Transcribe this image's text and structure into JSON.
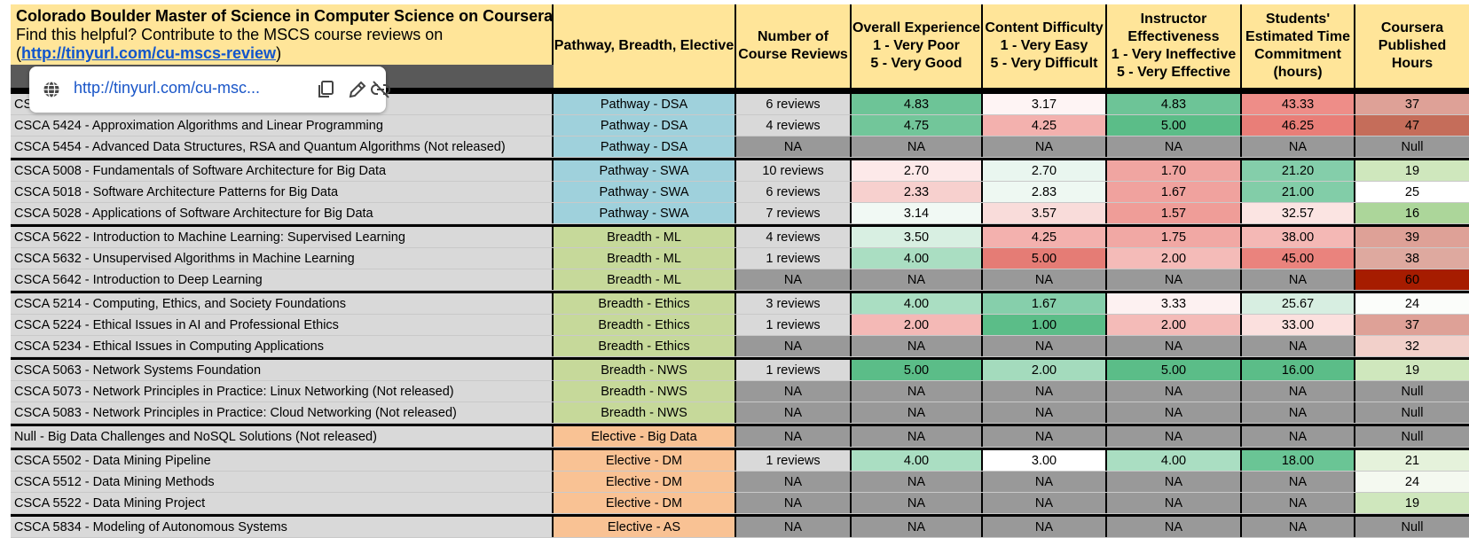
{
  "title": "Colorado Boulder Master of Science in Computer Science on Coursera",
  "subtitle_prefix": "Find this helpful? Contribute to the MSCS course reviews on",
  "subtitle_open": "(",
  "subtitle_link": "http://tinyurl.com/cu-mscs-review",
  "subtitle_close": ")",
  "headers": {
    "pathway": "Pathway, Breadth, Elective",
    "reviews": [
      "Number of",
      "Course Reviews"
    ],
    "overall": [
      "Overall Experience",
      "1 - Very Poor",
      "5 - Very Good"
    ],
    "difficulty": [
      "Content Difficulty",
      "1 - Very Easy",
      "5 - Very Difficult"
    ],
    "instructor": [
      "Instructor",
      "Effectiveness",
      "1 - Very Ineffective",
      "5 - Very Effective"
    ],
    "time": [
      "Students'",
      "Estimated Time",
      "Commitment",
      "(hours)"
    ],
    "hours": [
      "Coursera",
      "Published",
      "Hours"
    ]
  },
  "link_popup": {
    "url": "http://tinyurl.com/cu-msc...",
    "globe_icon": "globe-icon",
    "copy_icon": "copy-icon",
    "edit_icon": "pencil-icon",
    "unlink_icon": "unlink-icon"
  },
  "colors": {
    "header_bg": "#ffe599",
    "dsa": "#9fd1dc",
    "swa": "#9fd1dc",
    "breadth": "#c6d99a",
    "elective": "#f9c294",
    "na": "#999999"
  },
  "rows": [
    {
      "course": "CS",
      "path": "Pathway - DSA",
      "pcolor": "#9fd1dc",
      "reviews": "6 reviews",
      "overall": "4.83",
      "oc": "#6dc497",
      "diff": "3.17",
      "dc": "#fef4f4",
      "inst": "4.83",
      "ic": "#6dc497",
      "time": "43.33",
      "tc": "#ee8d88",
      "hours": "37",
      "hc": "#dea197",
      "group": true
    },
    {
      "course": "CSCA 5424 - Approximation Algorithms and Linear Programming",
      "path": "Pathway - DSA",
      "pcolor": "#9fd1dc",
      "reviews": "4 reviews",
      "overall": "4.75",
      "oc": "#72c69a",
      "diff": "4.25",
      "dc": "#f3b1ae",
      "inst": "5.00",
      "ic": "#5bbd88",
      "time": "46.25",
      "tc": "#e97e78",
      "hours": "47",
      "hc": "#c56d5a"
    },
    {
      "course": "CSCA 5454 - Advanced Data Structures, RSA and Quantum Algorithms (Not released)",
      "path": "Pathway - DSA",
      "pcolor": "#9fd1dc",
      "reviews": "NA",
      "overall": "NA",
      "oc": "#999999",
      "diff": "NA",
      "dc": "#999999",
      "inst": "NA",
      "ic": "#999999",
      "time": "NA",
      "tc": "#999999",
      "hours": "Null",
      "hc": "#999999",
      "rna": true
    },
    {
      "course": "CSCA 5008 - Fundamentals of Software Architecture for Big Data",
      "path": "Pathway - SWA",
      "pcolor": "#9fd1dc",
      "reviews": "10 reviews",
      "overall": "2.70",
      "oc": "#fde9e9",
      "diff": "2.70",
      "dc": "#e9f6ef",
      "inst": "1.70",
      "ic": "#f0a5a1",
      "time": "21.20",
      "tc": "#84ceaa",
      "hours": "19",
      "hc": "#cfe7bd",
      "group": true
    },
    {
      "course": "CSCA 5018 - Software Architecture Patterns for Big Data",
      "path": "Pathway - SWA",
      "pcolor": "#9fd1dc",
      "reviews": "6 reviews",
      "overall": "2.33",
      "oc": "#f7d0ce",
      "diff": "2.83",
      "dc": "#eef8f2",
      "inst": "1.67",
      "ic": "#f0a29e",
      "time": "21.00",
      "tc": "#82cda8",
      "hours": "25",
      "hc": "#ffffff"
    },
    {
      "course": "CSCA 5028 - Applications of Software Architecture for Big Data",
      "path": "Pathway - SWA",
      "pcolor": "#9fd1dc",
      "reviews": "7 reviews",
      "overall": "3.14",
      "oc": "#f1f9f4",
      "diff": "3.57",
      "dc": "#f9dcda",
      "inst": "1.57",
      "ic": "#ef9d98",
      "time": "32.57",
      "tc": "#fbe4e2",
      "hours": "16",
      "hc": "#acd69a"
    },
    {
      "course": "CSCA 5622 - Introduction to Machine Learning: Supervised Learning",
      "path": "Breadth - ML",
      "pcolor": "#c6d99a",
      "reviews": "4 reviews",
      "overall": "3.50",
      "oc": "#d8efe2",
      "diff": "4.25",
      "dc": "#f3b1ae",
      "inst": "1.75",
      "ic": "#f1a8a4",
      "time": "38.00",
      "tc": "#f4b8b5",
      "hours": "39",
      "hc": "#dea197",
      "group": true
    },
    {
      "course": "CSCA 5632 - Unsupervised Algorithms in Machine Learning",
      "path": "Breadth - ML",
      "pcolor": "#c6d99a",
      "reviews": "1 reviews",
      "overall": "4.00",
      "oc": "#aadec2",
      "diff": "5.00",
      "dc": "#e57c75",
      "inst": "2.00",
      "ic": "#f4bbb8",
      "time": "45.00",
      "tc": "#ea837d",
      "hours": "38",
      "hc": "#dea99f"
    },
    {
      "course": "CSCA 5642 - Introduction to Deep Learning",
      "path": "Breadth - ML",
      "pcolor": "#c6d99a",
      "reviews": "NA",
      "overall": "NA",
      "oc": "#999999",
      "diff": "NA",
      "dc": "#999999",
      "inst": "NA",
      "ic": "#999999",
      "time": "NA",
      "tc": "#999999",
      "hours": "60",
      "hc": "#a61c00",
      "rna": true
    },
    {
      "course": "CSCA 5214 - Computing, Ethics, and Society Foundations",
      "path": "Breadth - Ethics",
      "pcolor": "#c6d99a",
      "reviews": "3 reviews",
      "overall": "4.00",
      "oc": "#aadec2",
      "diff": "1.67",
      "dc": "#86cfab",
      "inst": "3.33",
      "ic": "#fdf1f1",
      "time": "25.67",
      "tc": "#d7eee1",
      "hours": "24",
      "hc": "#fbfdfa",
      "group": true
    },
    {
      "course": "CSCA 5224 - Ethical Issues in AI and Professional Ethics",
      "path": "Breadth - Ethics",
      "pcolor": "#c6d99a",
      "reviews": "1 reviews",
      "overall": "2.00",
      "oc": "#f4b9b6",
      "diff": "1.00",
      "dc": "#5bbd88",
      "inst": "2.00",
      "ic": "#f4bbb8",
      "time": "33.00",
      "tc": "#fbe0de",
      "hours": "37",
      "hc": "#dea197"
    },
    {
      "course": "CSCA 5234 - Ethical Issues in Computing Applications",
      "path": "Breadth - Ethics",
      "pcolor": "#c6d99a",
      "reviews": "NA",
      "overall": "NA",
      "oc": "#999999",
      "diff": "NA",
      "dc": "#999999",
      "inst": "NA",
      "ic": "#999999",
      "time": "NA",
      "tc": "#999999",
      "hours": "32",
      "hc": "#f2d0ca",
      "rna": true
    },
    {
      "course": "CSCA 5063 - Network Systems Foundation",
      "path": "Breadth - NWS",
      "pcolor": "#c6d99a",
      "reviews": "1 reviews",
      "overall": "5.00",
      "oc": "#5bbd88",
      "diff": "2.00",
      "dc": "#a4dbbd",
      "inst": "5.00",
      "ic": "#5bbd88",
      "time": "16.00",
      "tc": "#5bbd88",
      "hours": "19",
      "hc": "#cfe7bd",
      "group": true
    },
    {
      "course": "CSCA 5073 - Network Principles in Practice: Linux Networking (Not released)",
      "path": "Breadth - NWS",
      "pcolor": "#c6d99a",
      "reviews": "NA",
      "overall": "NA",
      "oc": "#999999",
      "diff": "NA",
      "dc": "#999999",
      "inst": "NA",
      "ic": "#999999",
      "time": "NA",
      "tc": "#999999",
      "hours": "Null",
      "hc": "#999999",
      "rna": true
    },
    {
      "course": "CSCA 5083 - Network Principles in Practice: Cloud Networking (Not released)",
      "path": "Breadth - NWS",
      "pcolor": "#c6d99a",
      "reviews": "NA",
      "overall": "NA",
      "oc": "#999999",
      "diff": "NA",
      "dc": "#999999",
      "inst": "NA",
      "ic": "#999999",
      "time": "NA",
      "tc": "#999999",
      "hours": "Null",
      "hc": "#999999",
      "rna": true
    },
    {
      "course": "Null - Big Data Challenges and NoSQL Solutions (Not released)",
      "path": "Elective - Big Data",
      "pcolor": "#f9c294",
      "reviews": "NA",
      "overall": "NA",
      "oc": "#999999",
      "diff": "NA",
      "dc": "#999999",
      "inst": "NA",
      "ic": "#999999",
      "time": "NA",
      "tc": "#999999",
      "hours": "Null",
      "hc": "#999999",
      "rna": true,
      "group": true
    },
    {
      "course": "CSCA 5502 - Data Mining Pipeline",
      "path": "Elective - DM",
      "pcolor": "#f9c294",
      "reviews": "1 reviews",
      "overall": "4.00",
      "oc": "#aadec2",
      "diff": "3.00",
      "dc": "#ffffff",
      "inst": "4.00",
      "ic": "#aadec2",
      "time": "18.00",
      "tc": "#6ac595",
      "hours": "21",
      "hc": "#e5f2db",
      "group": true
    },
    {
      "course": "CSCA 5512 - Data Mining Methods",
      "path": "Elective - DM",
      "pcolor": "#f9c294",
      "reviews": "NA",
      "overall": "NA",
      "oc": "#999999",
      "diff": "NA",
      "dc": "#999999",
      "inst": "NA",
      "ic": "#999999",
      "time": "NA",
      "tc": "#999999",
      "hours": "24",
      "hc": "#f4f9f0",
      "rna": true
    },
    {
      "course": "CSCA 5522 - Data Mining Project",
      "path": "Elective - DM",
      "pcolor": "#f9c294",
      "reviews": "NA",
      "overall": "NA",
      "oc": "#999999",
      "diff": "NA",
      "dc": "#999999",
      "inst": "NA",
      "ic": "#999999",
      "time": "NA",
      "tc": "#999999",
      "hours": "19",
      "hc": "#cfe7bd",
      "rna": true
    },
    {
      "course": "CSCA 5834 - Modeling of Autonomous Systems",
      "path": "Elective - AS",
      "pcolor": "#f9c294",
      "reviews": "NA",
      "overall": "NA",
      "oc": "#999999",
      "diff": "NA",
      "dc": "#999999",
      "inst": "NA",
      "ic": "#999999",
      "time": "NA",
      "tc": "#999999",
      "hours": "Null",
      "hc": "#999999",
      "rna": true,
      "group": true
    }
  ]
}
